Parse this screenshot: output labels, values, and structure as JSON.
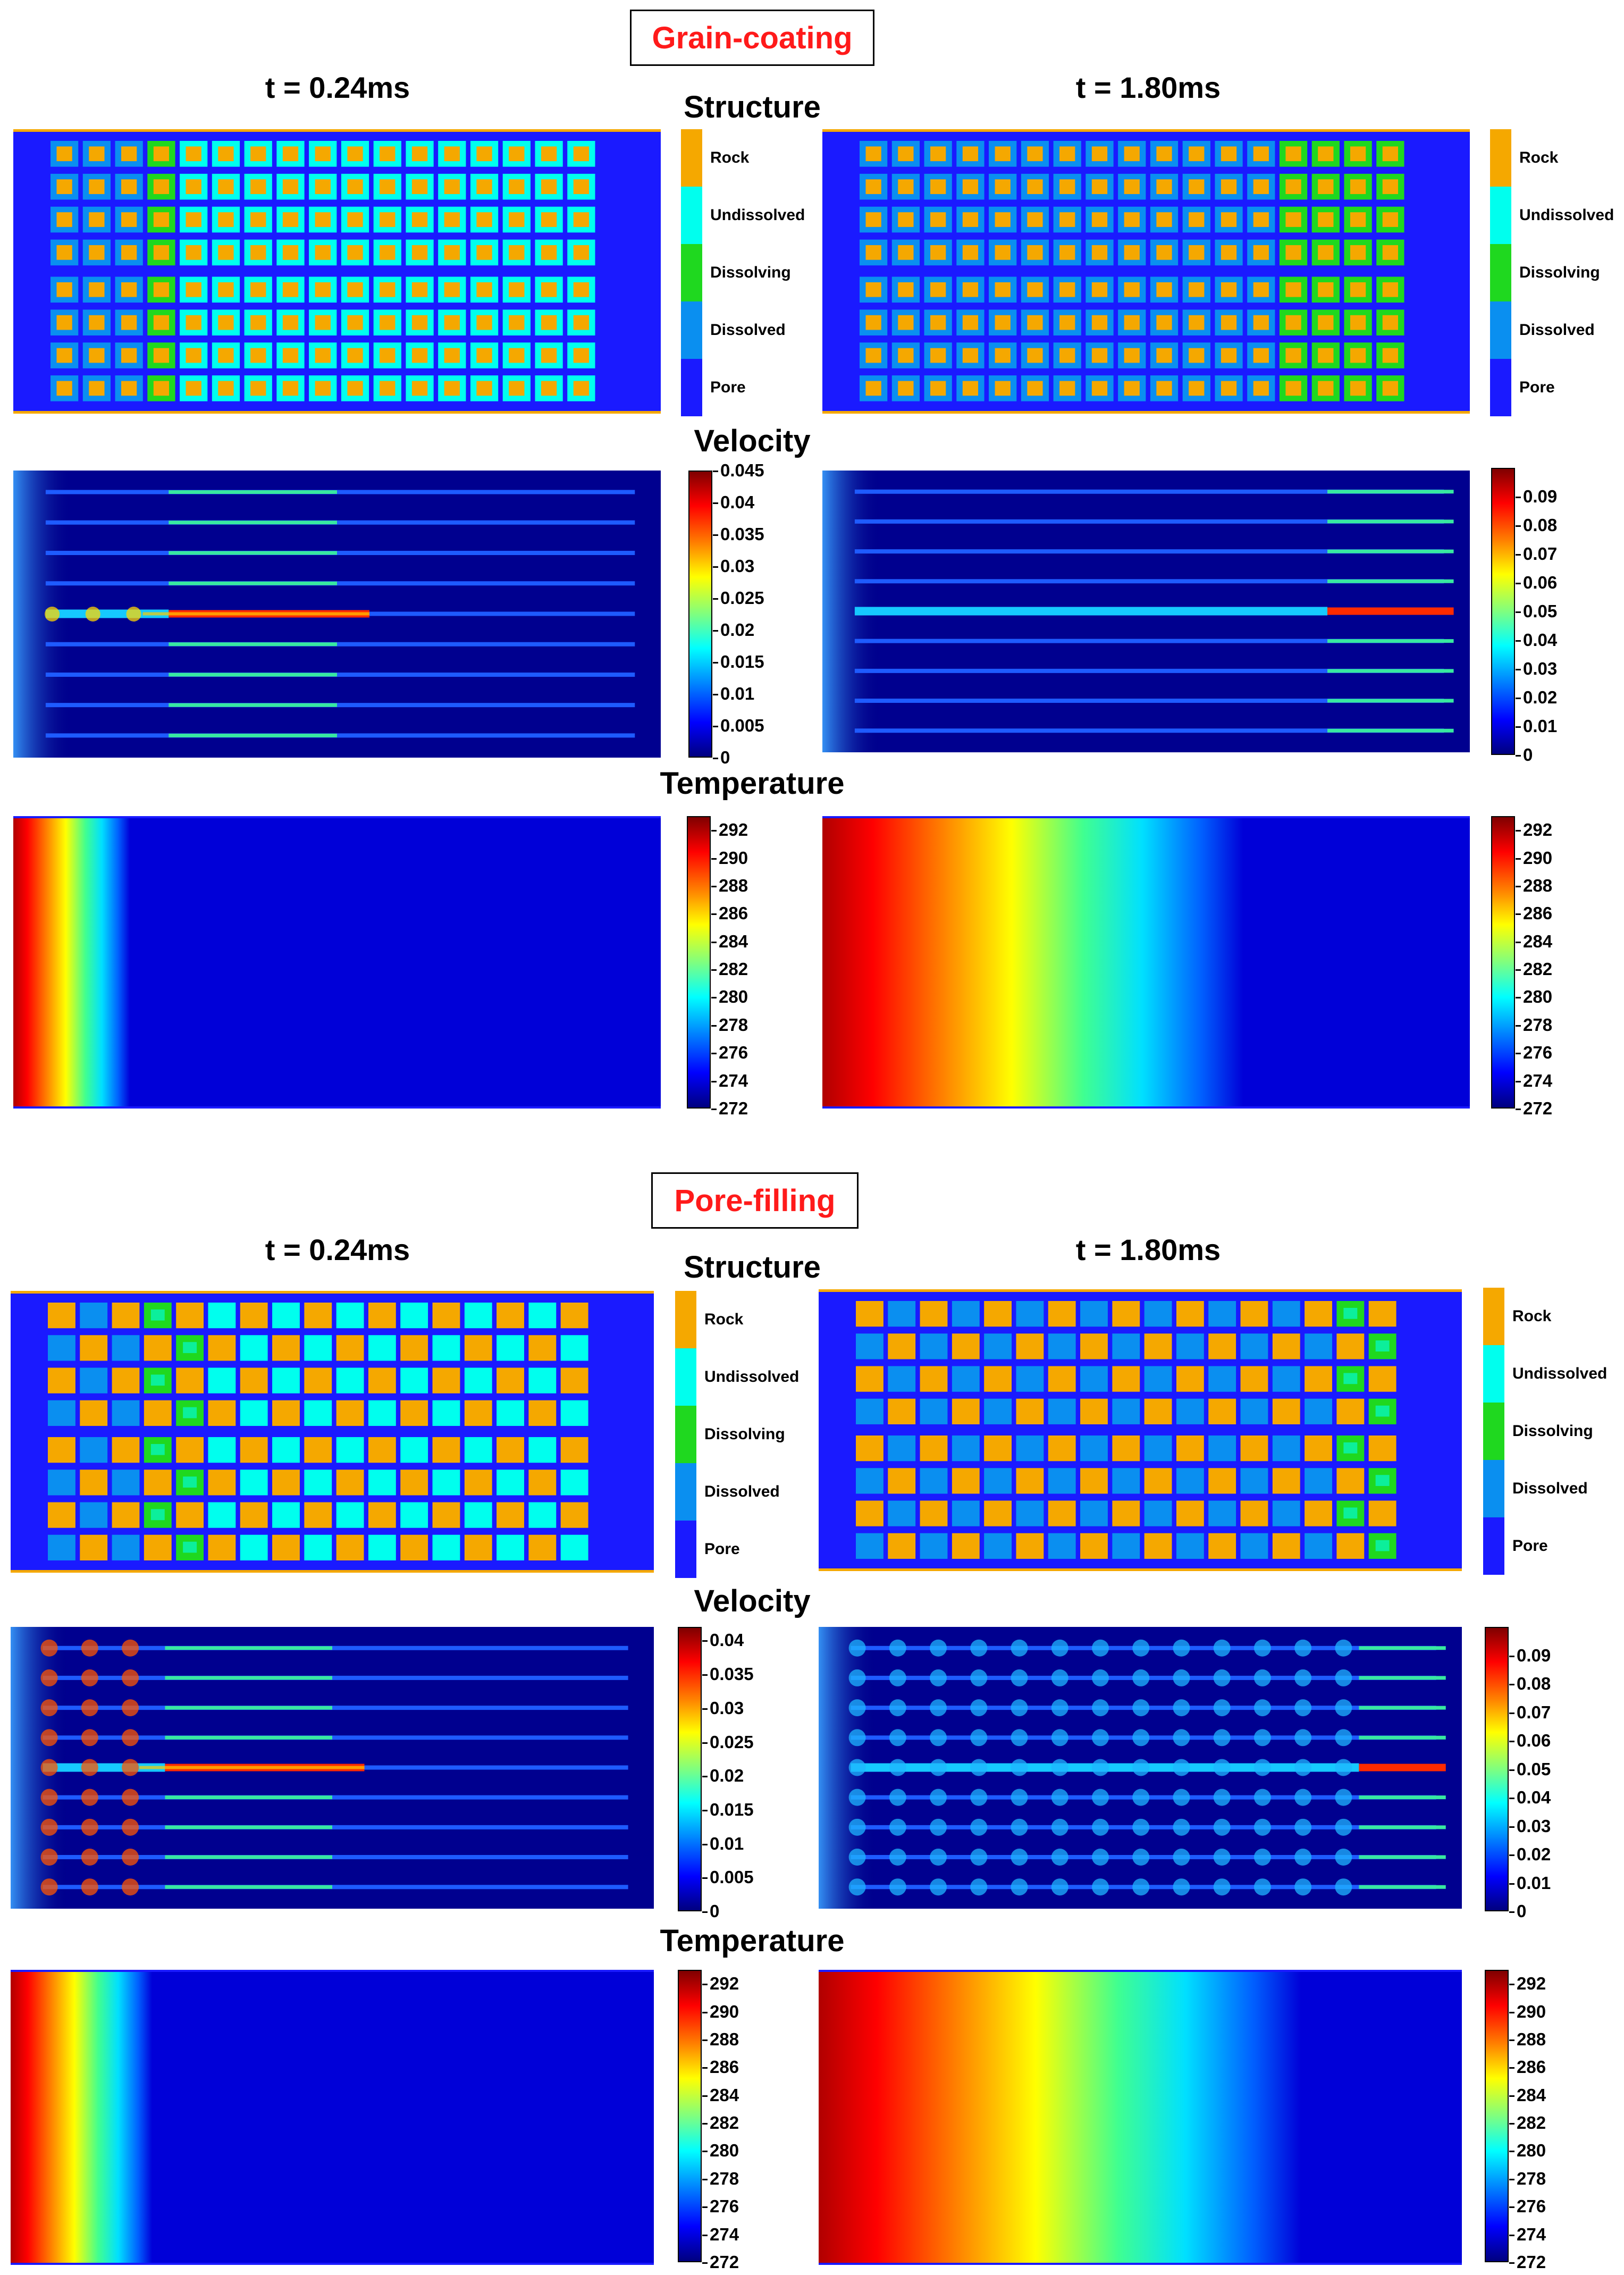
{
  "sections": [
    {
      "id": "grain",
      "title": "Grain-coating",
      "times": [
        "t = 0.24ms",
        "t = 1.80ms"
      ],
      "row_labels": {
        "structure": "Structure",
        "velocity": "Velocity",
        "temperature": "Temperature"
      },
      "dissolution_front_col": [
        3,
        13
      ],
      "pore_mode": "coating",
      "legend": {
        "labels": [
          "Rock",
          "Undissolved",
          "Dissolving",
          "Dissolved",
          "Pore"
        ],
        "colors": [
          "#f5a800",
          "#00ffee",
          "#1fd81f",
          "#0a8ff0",
          "#1a1aff"
        ]
      },
      "velocity_scales": [
        {
          "max": 0.045,
          "ticks": [
            "0.045",
            "0.04",
            "0.035",
            "0.03",
            "0.025",
            "0.02",
            "0.015",
            "0.01",
            "0.005",
            "0"
          ]
        },
        {
          "max": 0.1,
          "ticks": [
            "0.09",
            "0.08",
            "0.07",
            "0.06",
            "0.05",
            "0.04",
            "0.03",
            "0.02",
            "0.01",
            "0"
          ]
        }
      ],
      "temperature_scale": {
        "min": 272,
        "max": 293,
        "ticks": [
          "292",
          "290",
          "288",
          "286",
          "284",
          "282",
          "280",
          "278",
          "276",
          "274",
          "272"
        ]
      },
      "temperature_front": [
        0.18,
        0.65
      ]
    },
    {
      "id": "pore",
      "title": "Pore-filling",
      "times": [
        "t = 0.24ms",
        "t = 1.80ms"
      ],
      "row_labels": {
        "structure": "Structure",
        "velocity": "Velocity",
        "temperature": "Temperature"
      },
      "dissolution_front_col": [
        3,
        15
      ],
      "pore_mode": "filling",
      "legend": {
        "labels": [
          "Rock",
          "Undissolved",
          "Dissolving",
          "Dissolved",
          "Pore"
        ],
        "colors": [
          "#f5a800",
          "#00ffee",
          "#1fd81f",
          "#0a8ff0",
          "#1a1aff"
        ]
      },
      "velocity_scales": [
        {
          "max": 0.042,
          "ticks": [
            "0.04",
            "0.035",
            "0.03",
            "0.025",
            "0.02",
            "0.015",
            "0.01",
            "0.005",
            "0"
          ]
        },
        {
          "max": 0.1,
          "ticks": [
            "0.09",
            "0.08",
            "0.07",
            "0.06",
            "0.05",
            "0.04",
            "0.03",
            "0.02",
            "0.01",
            "0"
          ]
        }
      ],
      "temperature_scale": {
        "min": 272,
        "max": 293,
        "ticks": [
          "292",
          "290",
          "288",
          "286",
          "284",
          "282",
          "280",
          "278",
          "276",
          "274",
          "272"
        ]
      },
      "temperature_front": [
        0.22,
        0.75
      ]
    }
  ]
}
